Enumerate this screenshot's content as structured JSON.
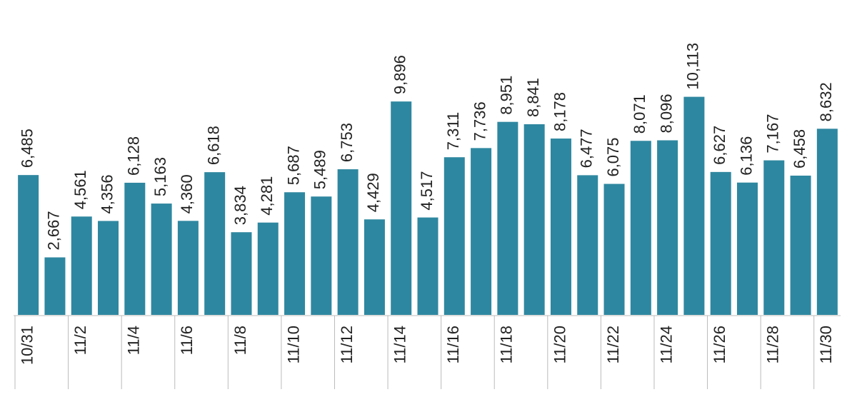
{
  "chart_data": {
    "type": "bar",
    "color": "#2e87a0",
    "categories": [
      "10/31",
      null,
      "11/2",
      null,
      "11/4",
      null,
      "11/6",
      null,
      "11/8",
      null,
      "11/10",
      null,
      "11/12",
      null,
      "11/14",
      null,
      "11/16",
      null,
      "11/18",
      null,
      "11/20",
      null,
      "11/22",
      null,
      "11/24",
      null,
      "11/26",
      null,
      "11/28",
      null,
      "11/30"
    ],
    "values": [
      6485,
      2667,
      4561,
      4356,
      6128,
      5163,
      4360,
      6618,
      3834,
      4281,
      5687,
      5489,
      6753,
      4429,
      9896,
      4517,
      7311,
      7736,
      8951,
      8841,
      8178,
      6477,
      6075,
      8071,
      8096,
      10113,
      6627,
      6136,
      7167,
      6458,
      8632
    ],
    "value_labels": [
      "6,485",
      "2,667",
      "4,561",
      "4,356",
      "6,128",
      "5,163",
      "4,360",
      "6,618",
      "3,834",
      "4,281",
      "5,687",
      "5,489",
      "6,753",
      "4,429",
      "9,896",
      "4,517",
      "7,311",
      "7,736",
      "8,951",
      "8,841",
      "8,178",
      "6,477",
      "6,075",
      "8,071",
      "8,096",
      "10,113",
      "6,627",
      "6,136",
      "7,167",
      "6,458",
      "8,632"
    ]
  }
}
